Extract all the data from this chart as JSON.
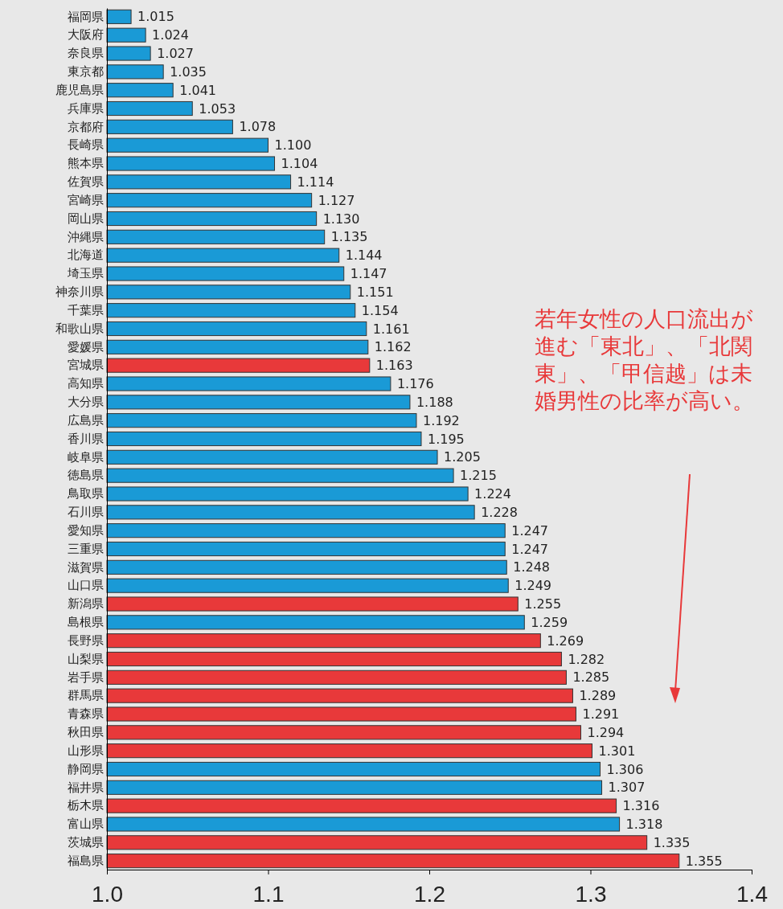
{
  "chart_data": {
    "type": "bar",
    "orientation": "horizontal",
    "categories": [
      "福岡県",
      "大阪府",
      "奈良県",
      "東京都",
      "鹿児島県",
      "兵庫県",
      "京都府",
      "長崎県",
      "熊本県",
      "佐賀県",
      "宮崎県",
      "岡山県",
      "沖縄県",
      "北海道",
      "埼玉県",
      "神奈川県",
      "千葉県",
      "和歌山県",
      "愛媛県",
      "宮城県",
      "高知県",
      "大分県",
      "広島県",
      "香川県",
      "岐阜県",
      "徳島県",
      "鳥取県",
      "石川県",
      "愛知県",
      "三重県",
      "滋賀県",
      "山口県",
      "新潟県",
      "島根県",
      "長野県",
      "山梨県",
      "岩手県",
      "群馬県",
      "青森県",
      "秋田県",
      "山形県",
      "静岡県",
      "福井県",
      "栃木県",
      "富山県",
      "茨城県",
      "福島県"
    ],
    "values": [
      1.015,
      1.024,
      1.027,
      1.035,
      1.041,
      1.053,
      1.078,
      1.1,
      1.104,
      1.114,
      1.127,
      1.13,
      1.135,
      1.144,
      1.147,
      1.151,
      1.154,
      1.161,
      1.162,
      1.163,
      1.176,
      1.188,
      1.192,
      1.195,
      1.205,
      1.215,
      1.224,
      1.228,
      1.247,
      1.247,
      1.248,
      1.249,
      1.255,
      1.259,
      1.269,
      1.282,
      1.285,
      1.289,
      1.291,
      1.294,
      1.301,
      1.306,
      1.307,
      1.316,
      1.318,
      1.335,
      1.355
    ],
    "value_labels": [
      "1.015",
      "1.024",
      "1.027",
      "1.035",
      "1.041",
      "1.053",
      "1.078",
      "1.100",
      "1.104",
      "1.114",
      "1.127",
      "1.130",
      "1.135",
      "1.144",
      "1.147",
      "1.151",
      "1.154",
      "1.161",
      "1.162",
      "1.163",
      "1.176",
      "1.188",
      "1.192",
      "1.195",
      "1.205",
      "1.215",
      "1.224",
      "1.228",
      "1.247",
      "1.247",
      "1.248",
      "1.249",
      "1.255",
      "1.259",
      "1.269",
      "1.282",
      "1.285",
      "1.289",
      "1.291",
      "1.294",
      "1.301",
      "1.306",
      "1.307",
      "1.316",
      "1.318",
      "1.335",
      "1.355"
    ],
    "colors": [
      "#1a9ad6",
      "#1a9ad6",
      "#1a9ad6",
      "#1a9ad6",
      "#1a9ad6",
      "#1a9ad6",
      "#1a9ad6",
      "#1a9ad6",
      "#1a9ad6",
      "#1a9ad6",
      "#1a9ad6",
      "#1a9ad6",
      "#1a9ad6",
      "#1a9ad6",
      "#1a9ad6",
      "#1a9ad6",
      "#1a9ad6",
      "#1a9ad6",
      "#1a9ad6",
      "#e8393a",
      "#1a9ad6",
      "#1a9ad6",
      "#1a9ad6",
      "#1a9ad6",
      "#1a9ad6",
      "#1a9ad6",
      "#1a9ad6",
      "#1a9ad6",
      "#1a9ad6",
      "#1a9ad6",
      "#1a9ad6",
      "#1a9ad6",
      "#e8393a",
      "#1a9ad6",
      "#e8393a",
      "#e8393a",
      "#e8393a",
      "#e8393a",
      "#e8393a",
      "#e8393a",
      "#e8393a",
      "#1a9ad6",
      "#1a9ad6",
      "#e8393a",
      "#1a9ad6",
      "#e8393a",
      "#e8393a"
    ],
    "xlim": [
      1.0,
      1.4
    ],
    "xticks": [
      {
        "value": 1.0,
        "label": "1.0"
      },
      {
        "value": 1.1,
        "label": "1.1"
      },
      {
        "value": 1.2,
        "label": "1.2"
      },
      {
        "value": 1.3,
        "label": "1.3"
      },
      {
        "value": 1.4,
        "label": "1.4"
      }
    ],
    "annotations": [
      "若年女性の人口流出が進む「東北」、「北関東」、「甲信越」は未婚男性の比率が高い。"
    ]
  }
}
